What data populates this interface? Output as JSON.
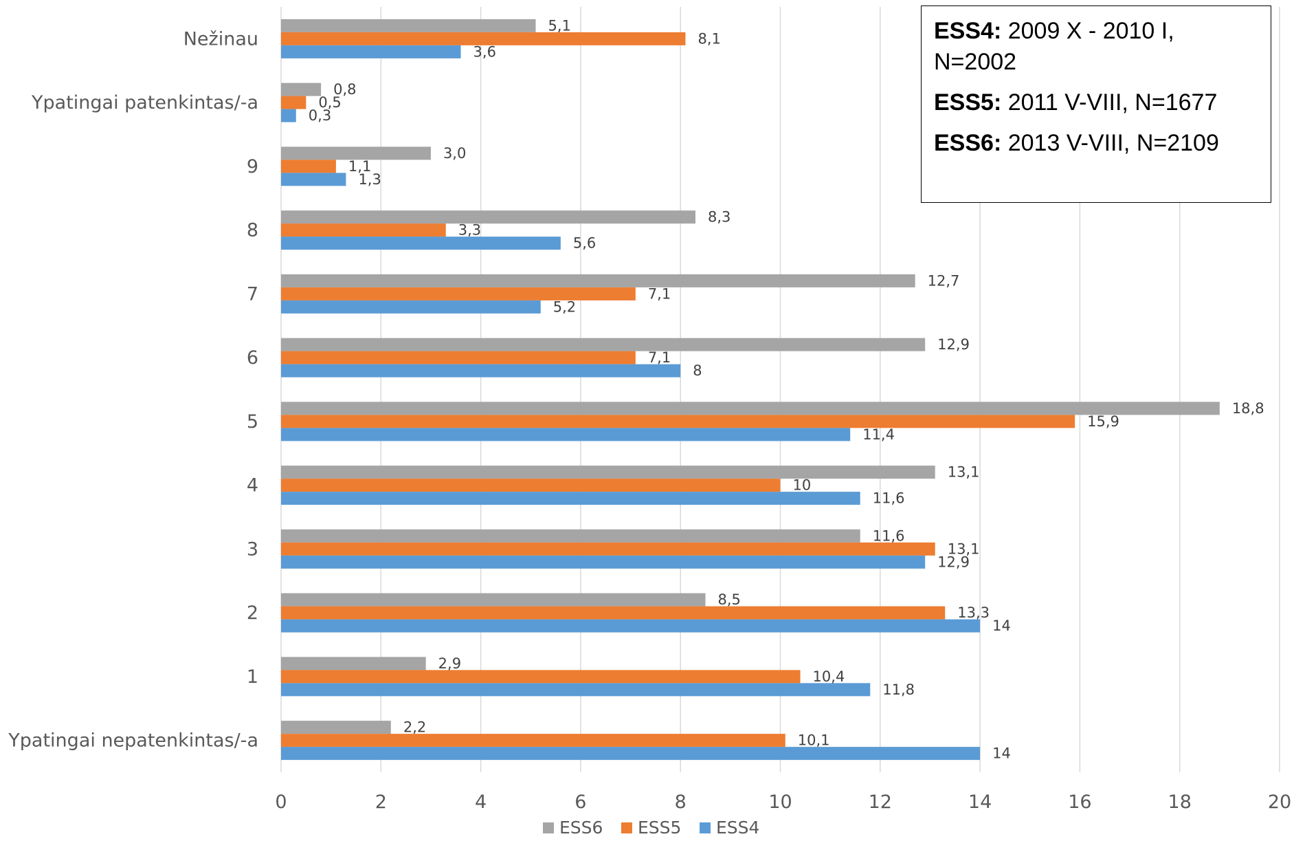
{
  "chart_data": {
    "type": "bar",
    "orientation": "horizontal",
    "categories": [
      "Ypatingai nepatenkintas/-a",
      "1",
      "2",
      "3",
      "4",
      "5",
      "6",
      "7",
      "8",
      "9",
      "Ypatingai patenkintas/-a",
      "Nežinau"
    ],
    "series": [
      {
        "name": "ESS6",
        "color": "#a5a5a5",
        "values": [
          2.2,
          2.9,
          8.5,
          11.6,
          13.1,
          18.8,
          12.9,
          12.7,
          8.3,
          3.0,
          0.8,
          5.1
        ],
        "labels": [
          "2,2",
          "2,9",
          "8,5",
          "11,6",
          "13,1",
          "18,8",
          "12,9",
          "12,7",
          "8,3",
          "3,0",
          "0,8",
          "5,1"
        ]
      },
      {
        "name": "ESS5",
        "color": "#ed7d31",
        "values": [
          10.1,
          10.4,
          13.3,
          13.1,
          10,
          15.9,
          7.1,
          7.1,
          3.3,
          1.1,
          0.5,
          8.1
        ],
        "labels": [
          "10,1",
          "10,4",
          "13,3",
          "13,1",
          "10",
          "15,9",
          "7,1",
          "7,1",
          "3,3",
          "1,1",
          "0,5",
          "8,1"
        ]
      },
      {
        "name": "ESS4",
        "color": "#5b9bd5",
        "values": [
          14,
          11.8,
          14,
          12.9,
          11.6,
          11.4,
          8,
          5.2,
          5.6,
          1.3,
          0.3,
          3.6
        ],
        "labels": [
          "14",
          "11,8",
          "14",
          "12,9",
          "11,6",
          "11,4",
          "8",
          "5,2",
          "5,6",
          "1,3",
          "0,3",
          "3,6"
        ]
      }
    ],
    "xlim": [
      0,
      20
    ],
    "x_ticks": [
      0,
      2,
      4,
      6,
      8,
      10,
      12,
      14,
      16,
      18,
      20
    ],
    "grid": "vertical",
    "legend": "bottom-center",
    "legend_order": [
      "ESS6",
      "ESS5",
      "ESS4"
    ],
    "title": "",
    "xlabel": "",
    "ylabel": ""
  },
  "note_box": {
    "lines": [
      {
        "label": "ESS4:",
        "text": " 2009 X - 2010 I, N=2002"
      },
      {
        "label": "ESS5:",
        "text": " 2011 V-VIII, N=1677"
      },
      {
        "label": "ESS6:",
        "text": " 2013 V-VIII, N=2109"
      }
    ]
  }
}
